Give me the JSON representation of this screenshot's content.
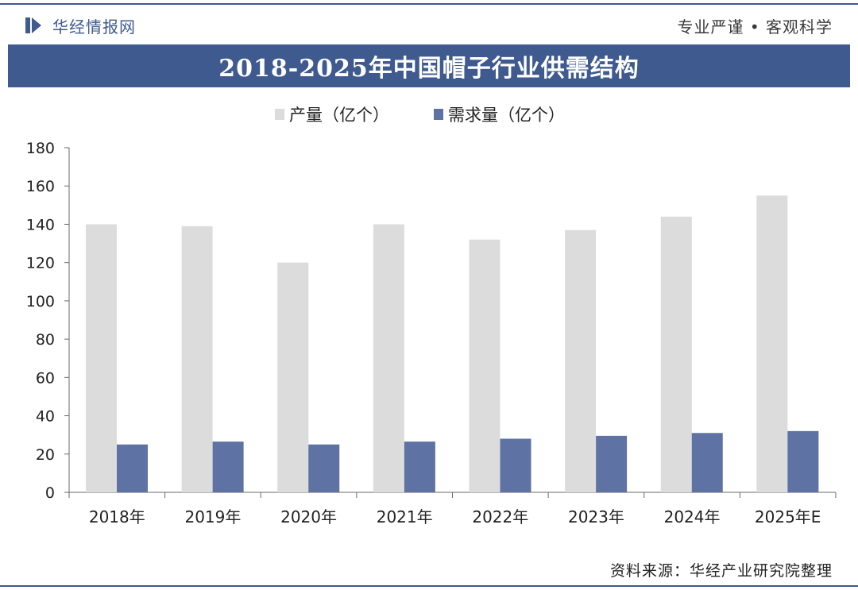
{
  "header": {
    "brand_name": "华经情报网",
    "slogan": "专业严谨 • 客观科学"
  },
  "footer": {
    "source": "资料来源：华经产业研究院整理"
  },
  "colors": {
    "brand": "#3f5a8f",
    "production": "#dcdcdc",
    "demand": "#5e73a3"
  },
  "chart_data": {
    "type": "bar",
    "title": "2018-2025年中国帽子行业供需结构",
    "categories": [
      "2018年",
      "2019年",
      "2020年",
      "2021年",
      "2022年",
      "2023年",
      "2024年",
      "2025年E"
    ],
    "series": [
      {
        "name": "产量（亿个）",
        "values": [
          140,
          139,
          120,
          140,
          132,
          137,
          144,
          155
        ]
      },
      {
        "name": "需求量（亿个）",
        "values": [
          25,
          26.5,
          25,
          26.5,
          28,
          29.5,
          31,
          32
        ]
      }
    ],
    "ylim": [
      0,
      180
    ],
    "yticks": [
      0,
      20,
      40,
      60,
      80,
      100,
      120,
      140,
      160,
      180
    ],
    "xlabel": "",
    "ylabel": "",
    "grid": false,
    "legend_position": "top"
  }
}
